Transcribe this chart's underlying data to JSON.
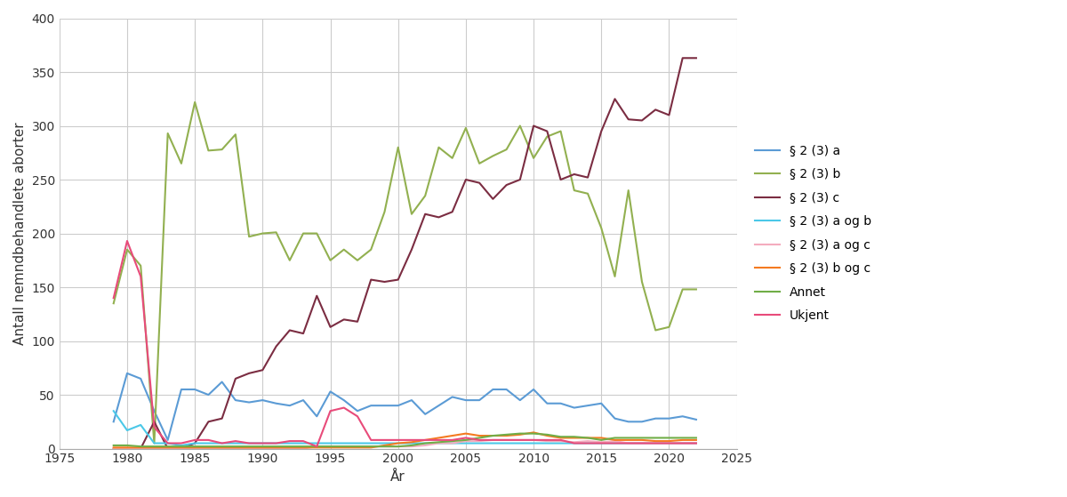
{
  "title": "",
  "xlabel": "År",
  "ylabel": "Antall nemndbehandlete aborter",
  "xlim": [
    1975,
    2025
  ],
  "ylim": [
    0,
    400
  ],
  "yticks": [
    0,
    50,
    100,
    150,
    200,
    250,
    300,
    350,
    400
  ],
  "xticks": [
    1975,
    1980,
    1985,
    1990,
    1995,
    2000,
    2005,
    2010,
    2015,
    2020,
    2025
  ],
  "series": {
    "§ 2 (3) a": {
      "color": "#5B9BD5",
      "years": [
        1979,
        1980,
        1981,
        1982,
        1983,
        1984,
        1985,
        1986,
        1987,
        1988,
        1989,
        1990,
        1991,
        1992,
        1993,
        1994,
        1995,
        1996,
        1997,
        1998,
        1999,
        2000,
        2001,
        2002,
        2003,
        2004,
        2005,
        2006,
        2007,
        2008,
        2009,
        2010,
        2011,
        2012,
        2013,
        2014,
        2015,
        2016,
        2017,
        2018,
        2019,
        2020,
        2021,
        2022
      ],
      "values": [
        25,
        70,
        65,
        35,
        8,
        55,
        55,
        50,
        62,
        45,
        43,
        45,
        42,
        40,
        45,
        30,
        53,
        45,
        35,
        40,
        40,
        40,
        45,
        32,
        40,
        48,
        45,
        45,
        55,
        55,
        45,
        55,
        42,
        42,
        38,
        40,
        42,
        28,
        25,
        25,
        28,
        28,
        30,
        27
      ]
    },
    "§ 2 (3) b": {
      "color": "#92B050",
      "years": [
        1979,
        1980,
        1981,
        1982,
        1983,
        1984,
        1985,
        1986,
        1987,
        1988,
        1989,
        1990,
        1991,
        1992,
        1993,
        1994,
        1995,
        1996,
        1997,
        1998,
        1999,
        2000,
        2001,
        2002,
        2003,
        2004,
        2005,
        2006,
        2007,
        2008,
        2009,
        2010,
        2011,
        2012,
        2013,
        2014,
        2015,
        2016,
        2017,
        2018,
        2019,
        2020,
        2021,
        2022
      ],
      "values": [
        135,
        185,
        170,
        5,
        293,
        265,
        322,
        277,
        278,
        292,
        197,
        200,
        201,
        175,
        200,
        200,
        175,
        185,
        175,
        185,
        220,
        280,
        218,
        235,
        280,
        270,
        298,
        265,
        272,
        278,
        300,
        270,
        290,
        295,
        240,
        237,
        205,
        160,
        240,
        155,
        110,
        113,
        148,
        148
      ]
    },
    "§ 2 (3) c": {
      "color": "#7B2D42",
      "years": [
        1979,
        1980,
        1981,
        1982,
        1983,
        1984,
        1985,
        1986,
        1987,
        1988,
        1989,
        1990,
        1991,
        1992,
        1993,
        1994,
        1995,
        1996,
        1997,
        1998,
        1999,
        2000,
        2001,
        2002,
        2003,
        2004,
        2005,
        2006,
        2007,
        2008,
        2009,
        2010,
        2011,
        2012,
        2013,
        2014,
        2015,
        2016,
        2017,
        2018,
        2019,
        2020,
        2021,
        2022
      ],
      "values": [
        0,
        0,
        0,
        25,
        0,
        0,
        5,
        25,
        28,
        65,
        70,
        73,
        95,
        110,
        107,
        142,
        113,
        120,
        118,
        157,
        155,
        157,
        185,
        218,
        215,
        220,
        250,
        247,
        232,
        245,
        250,
        300,
        295,
        250,
        255,
        252,
        295,
        325,
        306,
        305,
        315,
        310,
        363,
        363
      ]
    },
    "§ 2 (3) a og b": {
      "color": "#4BC8E8",
      "years": [
        1979,
        1980,
        1981,
        1982,
        1983,
        1984,
        1985,
        1986,
        1987,
        1988,
        1989,
        1990,
        1991,
        1992,
        1993,
        1994,
        1995,
        1996,
        1997,
        1998,
        1999,
        2000,
        2001,
        2002,
        2003,
        2004,
        2005,
        2006,
        2007,
        2008,
        2009,
        2010,
        2011,
        2012,
        2013,
        2014,
        2015,
        2016,
        2017,
        2018,
        2019,
        2020,
        2021,
        2022
      ],
      "values": [
        35,
        17,
        22,
        5,
        5,
        3,
        5,
        5,
        5,
        5,
        5,
        5,
        5,
        5,
        5,
        5,
        5,
        5,
        5,
        5,
        5,
        5,
        5,
        5,
        5,
        5,
        5,
        5,
        5,
        5,
        5,
        5,
        5,
        5,
        5,
        5,
        5,
        5,
        5,
        5,
        5,
        5,
        5,
        5
      ]
    },
    "§ 2 (3) a og c": {
      "color": "#F4ACBE",
      "years": [
        1979,
        1980,
        1981,
        1982,
        1983,
        1984,
        1985,
        1986,
        1987,
        1988,
        1989,
        1990,
        1991,
        1992,
        1993,
        1994,
        1995,
        1996,
        1997,
        1998,
        1999,
        2000,
        2001,
        2002,
        2003,
        2004,
        2005,
        2006,
        2007,
        2008,
        2009,
        2010,
        2011,
        2012,
        2013,
        2014,
        2015,
        2016,
        2017,
        2018,
        2019,
        2020,
        2021,
        2022
      ],
      "values": [
        0,
        0,
        0,
        0,
        0,
        0,
        0,
        0,
        0,
        0,
        0,
        0,
        0,
        0,
        0,
        2,
        2,
        2,
        2,
        2,
        2,
        2,
        2,
        3,
        5,
        5,
        7,
        7,
        8,
        8,
        8,
        8,
        7,
        7,
        6,
        7,
        6,
        7,
        5,
        5,
        5,
        5,
        5,
        5
      ]
    },
    "§ 2 (3) b og c": {
      "color": "#F47A20",
      "years": [
        1979,
        1980,
        1981,
        1982,
        1983,
        1984,
        1985,
        1986,
        1987,
        1988,
        1989,
        1990,
        1991,
        1992,
        1993,
        1994,
        1995,
        1996,
        1997,
        1998,
        1999,
        2000,
        2001,
        2002,
        2003,
        2004,
        2005,
        2006,
        2007,
        2008,
        2009,
        2010,
        2011,
        2012,
        2013,
        2014,
        2015,
        2016,
        2017,
        2018,
        2019,
        2020,
        2021,
        2022
      ],
      "values": [
        1,
        1,
        1,
        1,
        1,
        1,
        1,
        1,
        1,
        1,
        1,
        1,
        1,
        1,
        1,
        1,
        1,
        1,
        1,
        1,
        3,
        5,
        6,
        8,
        10,
        12,
        14,
        12,
        12,
        12,
        13,
        15,
        12,
        10,
        10,
        10,
        10,
        8,
        8,
        8,
        7,
        7,
        8,
        8
      ]
    },
    "Annet": {
      "color": "#70AD47",
      "years": [
        1979,
        1980,
        1981,
        1982,
        1983,
        1984,
        1985,
        1986,
        1987,
        1988,
        1989,
        1990,
        1991,
        1992,
        1993,
        1994,
        1995,
        1996,
        1997,
        1998,
        1999,
        2000,
        2001,
        2002,
        2003,
        2004,
        2005,
        2006,
        2007,
        2008,
        2009,
        2010,
        2011,
        2012,
        2013,
        2014,
        2015,
        2016,
        2017,
        2018,
        2019,
        2020,
        2021,
        2022
      ],
      "values": [
        3,
        3,
        2,
        2,
        2,
        2,
        2,
        2,
        2,
        2,
        2,
        2,
        2,
        2,
        2,
        2,
        2,
        2,
        2,
        2,
        2,
        2,
        3,
        5,
        6,
        7,
        8,
        10,
        12,
        13,
        14,
        14,
        13,
        11,
        11,
        10,
        8,
        10,
        10,
        10,
        10,
        10,
        10,
        10
      ]
    },
    "Ukjent": {
      "color": "#E84B7A",
      "years": [
        1979,
        1980,
        1981,
        1982,
        1983,
        1984,
        1985,
        1986,
        1987,
        1988,
        1989,
        1990,
        1991,
        1992,
        1993,
        1994,
        1995,
        1996,
        1997,
        1998,
        1999,
        2000,
        2001,
        2002,
        2003,
        2004,
        2005,
        2006,
        2007,
        2008,
        2009,
        2010,
        2011,
        2012,
        2013,
        2014,
        2015,
        2016,
        2017,
        2018,
        2019,
        2020,
        2021,
        2022
      ],
      "values": [
        140,
        193,
        160,
        20,
        5,
        5,
        8,
        8,
        5,
        7,
        5,
        5,
        5,
        7,
        7,
        2,
        35,
        38,
        30,
        8,
        8,
        8,
        8,
        8,
        8,
        8,
        10,
        8,
        8,
        8,
        8,
        8,
        8,
        8,
        5,
        5,
        5,
        5,
        5,
        5,
        5,
        5,
        5,
        5
      ]
    }
  },
  "background_color": "#ffffff",
  "grid_color": "#cccccc",
  "font_color": "#333333",
  "linewidth": 1.5
}
